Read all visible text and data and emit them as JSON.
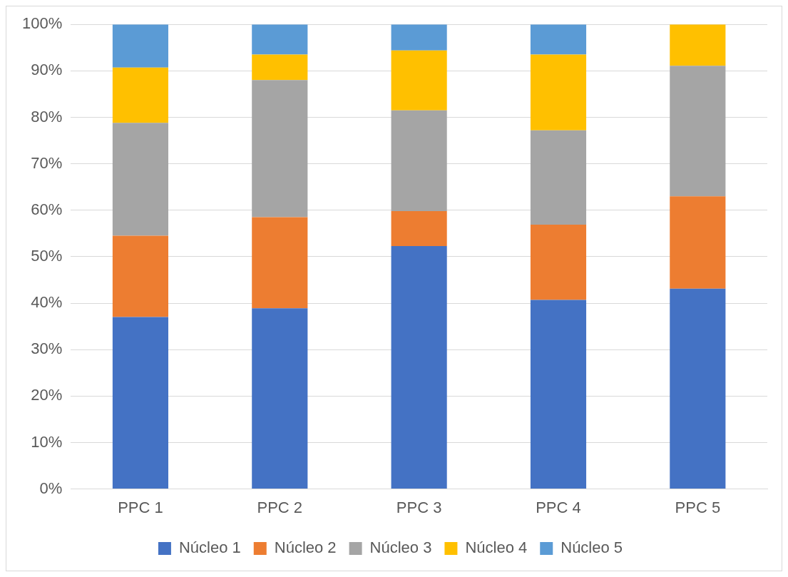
{
  "chart_data": {
    "type": "bar",
    "stacked": true,
    "categories": [
      "PPC 1",
      "PPC 2",
      "PPC 3",
      "PPC 4",
      "PPC 5"
    ],
    "series": [
      {
        "name": "Núcleo 1",
        "color": "#4472c4",
        "values": [
          37.0,
          38.9,
          52.3,
          40.7,
          43.1
        ]
      },
      {
        "name": "Núcleo 2",
        "color": "#ed7d31",
        "values": [
          17.5,
          19.6,
          7.5,
          16.2,
          19.9
        ]
      },
      {
        "name": "Núcleo 3",
        "color": "#a5a5a5",
        "values": [
          24.3,
          29.5,
          21.7,
          20.3,
          28.1
        ]
      },
      {
        "name": "Núcleo 4",
        "color": "#ffc000",
        "values": [
          11.9,
          5.5,
          12.9,
          16.3,
          8.9
        ]
      },
      {
        "name": "Núcleo 5",
        "color": "#5b9bd5",
        "values": [
          9.3,
          6.5,
          5.6,
          6.5,
          0
        ]
      }
    ],
    "ylim": [
      0,
      100
    ],
    "yticks": [
      {
        "value": 0,
        "label": "0%"
      },
      {
        "value": 10,
        "label": "10%"
      },
      {
        "value": 20,
        "label": "20%"
      },
      {
        "value": 30,
        "label": "30%"
      },
      {
        "value": 40,
        "label": "40%"
      },
      {
        "value": 50,
        "label": "50%"
      },
      {
        "value": 60,
        "label": "60%"
      },
      {
        "value": 70,
        "label": "70%"
      },
      {
        "value": 80,
        "label": "80%"
      },
      {
        "value": 90,
        "label": "90%"
      },
      {
        "value": 100,
        "label": "100%"
      }
    ],
    "grid": "y",
    "legend": "bottom"
  }
}
